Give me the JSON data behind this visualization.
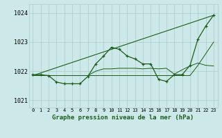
{
  "title": "Graphe pression niveau de la mer (hPa)",
  "bg_color": "#cce8e8",
  "grid_color": "#aacccc",
  "line_color": "#1a5c1a",
  "ylim": [
    1020.75,
    1024.3
  ],
  "xlim": [
    -0.5,
    23.5
  ],
  "yticks": [
    1021,
    1022,
    1023,
    1024
  ],
  "xticks": [
    0,
    1,
    2,
    3,
    4,
    5,
    6,
    7,
    8,
    9,
    10,
    11,
    12,
    13,
    14,
    15,
    16,
    17,
    18,
    19,
    20,
    21,
    22,
    23
  ],
  "series_main": [
    1021.88,
    1021.88,
    1021.85,
    1021.63,
    1021.57,
    1021.57,
    1021.57,
    1021.82,
    1022.25,
    1022.52,
    1022.82,
    1022.75,
    1022.52,
    1022.42,
    1022.25,
    1022.25,
    1021.72,
    1021.65,
    1021.88,
    1021.88,
    1022.2,
    1023.1,
    1023.55,
    1023.92
  ],
  "series_flat": [
    1021.85,
    1021.85,
    1021.85,
    1021.85,
    1021.85,
    1021.85,
    1021.85,
    1021.85,
    1021.85,
    1021.85,
    1021.85,
    1021.85,
    1021.85,
    1021.85,
    1021.85,
    1021.85,
    1021.85,
    1021.85,
    1021.85,
    1021.85,
    1021.85,
    1022.2,
    1022.6,
    1023.0
  ],
  "series_mid": [
    1021.85,
    1021.85,
    1021.85,
    1021.85,
    1021.85,
    1021.85,
    1021.85,
    1021.85,
    1022.0,
    1022.08,
    1022.08,
    1022.1,
    1022.1,
    1022.1,
    1022.08,
    1022.1,
    1022.08,
    1022.1,
    1021.9,
    1022.05,
    1022.18,
    1022.28,
    1022.2,
    1022.18
  ],
  "trend_x": [
    0,
    23
  ],
  "trend_y": [
    1021.85,
    1023.92
  ]
}
